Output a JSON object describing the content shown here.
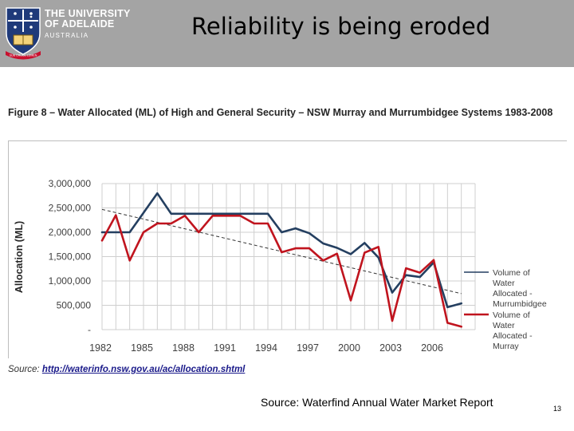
{
  "header": {
    "university_line1": "THE UNIVERSITY",
    "university_line2": "OF ADELAIDE",
    "university_line3": "AUSTRALIA",
    "logo_ribbon": "SUB CRUCE LUMEN",
    "title": "Reliability is being eroded",
    "bar_color": "#a4a4a4"
  },
  "figure": {
    "title": "Figure 8 – Water Allocated (ML) of High and General Security – NSW Murray and Murrumbidgee Systems 1983-2008",
    "source_label": "Source:",
    "source_link": "http://waterinfo.nsw.gov.au/ac/allocation.shtml"
  },
  "chart_data": {
    "type": "line",
    "title": "Water Allocated (ML) of High and General Security – NSW Murray and Murrumbidgee Systems 1983-2008",
    "xlabel": "",
    "ylabel": "Allocation (ML)",
    "ylim": [
      0,
      3000000
    ],
    "grid": true,
    "legend_position": "right",
    "x": [
      1982,
      1983,
      1984,
      1985,
      1986,
      1987,
      1988,
      1989,
      1990,
      1991,
      1992,
      1993,
      1994,
      1995,
      1996,
      1997,
      1998,
      1999,
      2000,
      2001,
      2002,
      2003,
      2004,
      2005,
      2006,
      2007,
      2008
    ],
    "x_ticks": [
      1982,
      1985,
      1988,
      1991,
      1994,
      1997,
      2000,
      2003,
      2006
    ],
    "y_ticks": [
      0,
      500000,
      1000000,
      1500000,
      2000000,
      2500000,
      3000000
    ],
    "y_tick_labels": [
      "-",
      "500,000",
      "1,000,000",
      "1,500,000",
      "2,000,000",
      "2,500,000",
      "3,000,000"
    ],
    "series": [
      {
        "name": "Volume of Water Allocated - Murrumbidgee",
        "legend_lines": [
          "Volume of",
          "Water",
          "Allocated -",
          "Murrumbidgee"
        ],
        "color": "#243f60",
        "values": [
          2000000,
          2000000,
          2000000,
          2400000,
          2800000,
          2380000,
          2380000,
          2380000,
          2380000,
          2380000,
          2380000,
          2380000,
          2380000,
          2000000,
          2080000,
          1980000,
          1770000,
          1680000,
          1550000,
          1780000,
          1480000,
          760000,
          1120000,
          1080000,
          1380000,
          460000,
          540000
        ]
      },
      {
        "name": "Volume of Water Allocated - Murray",
        "legend_lines": [
          "Volume of",
          "Water",
          "Allocated -",
          "Murray"
        ],
        "color": "#c0141e",
        "values": [
          1830000,
          2350000,
          1420000,
          2000000,
          2180000,
          2180000,
          2340000,
          2000000,
          2340000,
          2340000,
          2340000,
          2180000,
          2180000,
          1590000,
          1670000,
          1670000,
          1420000,
          1560000,
          600000,
          1580000,
          1700000,
          180000,
          1260000,
          1170000,
          1430000,
          140000,
          60000
        ]
      }
    ],
    "trendline": {
      "name": "Linear trend (dashed)",
      "color": "#333333",
      "start": [
        1982,
        2470000
      ],
      "end": [
        2008,
        740000
      ]
    }
  },
  "footer": {
    "source_text": "Source:  Waterfind Annual Water Market Report",
    "page_number": "13"
  }
}
